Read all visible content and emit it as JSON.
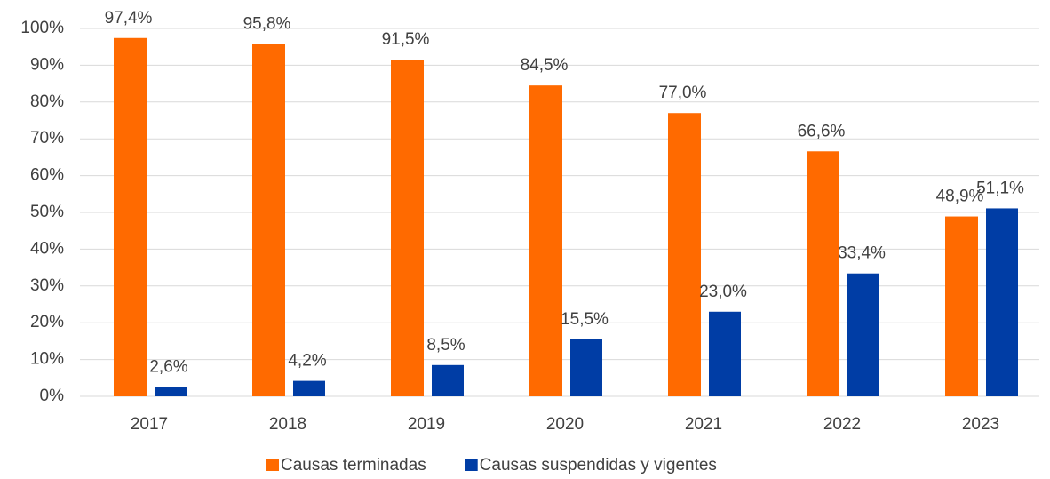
{
  "chart_data": {
    "type": "bar",
    "categories": [
      "2017",
      "2018",
      "2019",
      "2020",
      "2021",
      "2022",
      "2023"
    ],
    "series": [
      {
        "name": "Causas terminadas",
        "color": "#ff6a00",
        "values": [
          97.4,
          95.8,
          91.5,
          84.5,
          77.0,
          66.6,
          48.9
        ],
        "value_labels": [
          "97,4%",
          "95,8%",
          "91,5%",
          "84,5%",
          "77,0%",
          "66,6%",
          "48,9%"
        ]
      },
      {
        "name": "Causas suspendidas y vigentes",
        "color": "#003da5",
        "values": [
          2.6,
          4.2,
          8.5,
          15.5,
          23.0,
          33.4,
          51.1
        ],
        "value_labels": [
          "2,6%",
          "4,2%",
          "8,5%",
          "15,5%",
          "23,0%",
          "33,4%",
          "51,1%"
        ]
      }
    ],
    "ylim": [
      0,
      100
    ],
    "yticks": [
      {
        "value": 0,
        "label": "0%"
      },
      {
        "value": 10,
        "label": "10%"
      },
      {
        "value": 20,
        "label": "20%"
      },
      {
        "value": 30,
        "label": "30%"
      },
      {
        "value": 40,
        "label": "40%"
      },
      {
        "value": 50,
        "label": "50%"
      },
      {
        "value": 60,
        "label": "60%"
      },
      {
        "value": 70,
        "label": "70%"
      },
      {
        "value": 80,
        "label": "80%"
      },
      {
        "value": 90,
        "label": "90%"
      },
      {
        "value": 100,
        "label": "100%"
      }
    ],
    "grid": true,
    "legend": "bottom"
  }
}
